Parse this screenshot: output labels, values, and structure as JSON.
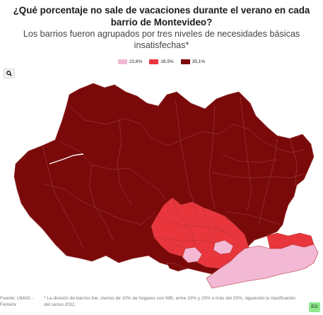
{
  "header": {
    "title": "¿Qué porcentaje no sale de vacaciones durante el verano en cada barrio de Montevideo?",
    "subtitle": "Los barrios fueron agrupados por tres niveles de necesidades básicas insatisfechas*"
  },
  "legend": [
    {
      "label": "22,6%",
      "color": "#f2b8d4"
    },
    {
      "label": "28,5%",
      "color": "#e8363c"
    },
    {
      "label": "35,1%",
      "color": "#7a0a0a"
    }
  ],
  "toolbar": {
    "zoom_icon": "search-icon"
  },
  "footer": {
    "source": "Fuente: UMAD - Ferreira",
    "note": "* La división de barrios fue: menos de 10% de hogares con NBI, entre 10% y 25% o más del 25%, siguiendo la clasificación del censo 2011.",
    "embed_label": "EO"
  },
  "colors": {
    "low": "#f2b8d4",
    "mid": "#e8363c",
    "high": "#7a0a0a",
    "border": "#b25555"
  }
}
